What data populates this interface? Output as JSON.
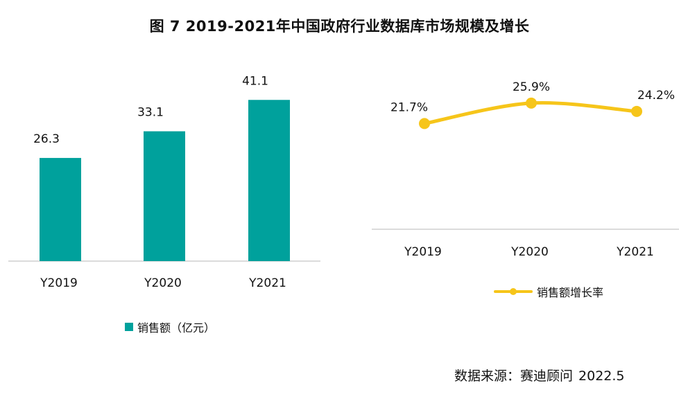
{
  "title": "图 7  2019-2021年中国政府行业数据库市场规模及增长",
  "source": {
    "label": "数据来源：赛迪顾问",
    "date": "2022.5"
  },
  "colors": {
    "bar": "#00A19C",
    "line": "#F6C51A",
    "axis": "#cfcfcf"
  },
  "chart_data": [
    {
      "type": "bar",
      "categories": [
        "Y2019",
        "Y2020",
        "Y2021"
      ],
      "series": [
        {
          "name": "销售额（亿元）",
          "values": [
            26.3,
            33.1,
            41.1
          ],
          "labels": [
            "26.3",
            "33.1",
            "41.1"
          ]
        }
      ],
      "ylim": [
        0,
        44.5
      ],
      "grid": false,
      "legend": "bottom"
    },
    {
      "type": "line",
      "categories": [
        "Y2019",
        "Y2020",
        "Y2021"
      ],
      "series": [
        {
          "name": "销售额增长率",
          "values": [
            21.7,
            25.9,
            24.2
          ],
          "labels": [
            "21.7%",
            "25.9%",
            "24.2%"
          ]
        }
      ],
      "ylim": [
        0,
        31
      ],
      "grid": false,
      "legend": "bottom"
    }
  ]
}
